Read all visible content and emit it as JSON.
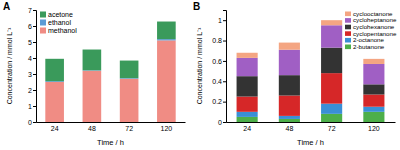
{
  "chart_data": [
    {
      "type": "bar",
      "title": "A",
      "stacked": true,
      "legend": "upper left",
      "xlabel": "Time / h",
      "ylabel": "Concentration / mmol L⁻¹",
      "categories": [
        "24",
        "48",
        "72",
        "120"
      ],
      "ylim": [
        0,
        7
      ],
      "yticks": [
        0,
        1,
        2,
        3,
        4,
        5,
        6,
        7
      ],
      "series": [
        {
          "name": "methanol",
          "color": "#f08c84",
          "values": [
            2.5,
            3.2,
            2.7,
            5.1
          ]
        },
        {
          "name": "ethanol",
          "color": "#5b9bd5",
          "values": [
            0.05,
            0.03,
            0.04,
            0.08
          ]
        },
        {
          "name": "acetone",
          "color": "#3a9a5b",
          "values": [
            1.4,
            1.3,
            1.1,
            1.1
          ]
        }
      ]
    },
    {
      "type": "bar",
      "title": "B",
      "stacked": true,
      "legend": "upper right",
      "xlabel": "Time / h",
      "ylabel": "Concentration / mmol L⁻¹",
      "categories": [
        "24",
        "48",
        "72",
        "120"
      ],
      "ylim": [
        0,
        1.1
      ],
      "yticks": [
        0,
        0.2,
        0.4,
        0.6,
        0.8,
        1
      ],
      "series": [
        {
          "name": "2-butanone",
          "color": "#4daf4a",
          "values": [
            0.05,
            0.03,
            0.08,
            0.1
          ]
        },
        {
          "name": "2-octanone",
          "color": "#3a8fd6",
          "values": [
            0.05,
            0.03,
            0.1,
            0.05
          ]
        },
        {
          "name": "cyclopentanone",
          "color": "#d62728",
          "values": [
            0.15,
            0.2,
            0.3,
            0.12
          ]
        },
        {
          "name": "cyclohexanone",
          "color": "#333333",
          "values": [
            0.2,
            0.2,
            0.25,
            0.1
          ]
        },
        {
          "name": "cycloheptanone",
          "color": "#a05fc4",
          "values": [
            0.18,
            0.25,
            0.22,
            0.2
          ]
        },
        {
          "name": "cyclooctanone",
          "color": "#f4a582",
          "values": [
            0.05,
            0.07,
            0.05,
            0.05
          ]
        }
      ]
    }
  ]
}
